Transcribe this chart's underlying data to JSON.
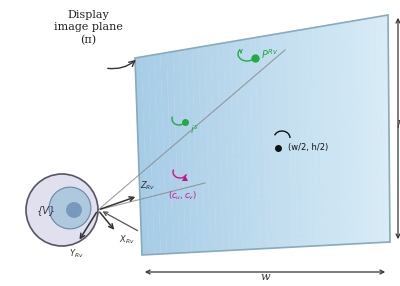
{
  "fig_width": 4.0,
  "fig_height": 2.86,
  "dpi": 100,
  "bg_color": "#ffffff",
  "green_color": "#22aa44",
  "magenta_color": "#cc1188",
  "axis_color": "#333333",
  "ray_color": "#888888",
  "panel_fill": "#c8dff0",
  "panel_edge": "#99bbcc",
  "eye_outer": "#ddddee",
  "eye_border": "#555566",
  "lens_fill": "#aec8dd",
  "lens_border": "#6688aa",
  "iris_fill": "#7799bb",
  "V_label": "{V}",
  "Z_sub": "Rv",
  "X_sub": "Rv",
  "Y_sub": "Rv",
  "display_label": "Display\nimage plane\n(π)",
  "w_label": "w",
  "h_label": "h"
}
